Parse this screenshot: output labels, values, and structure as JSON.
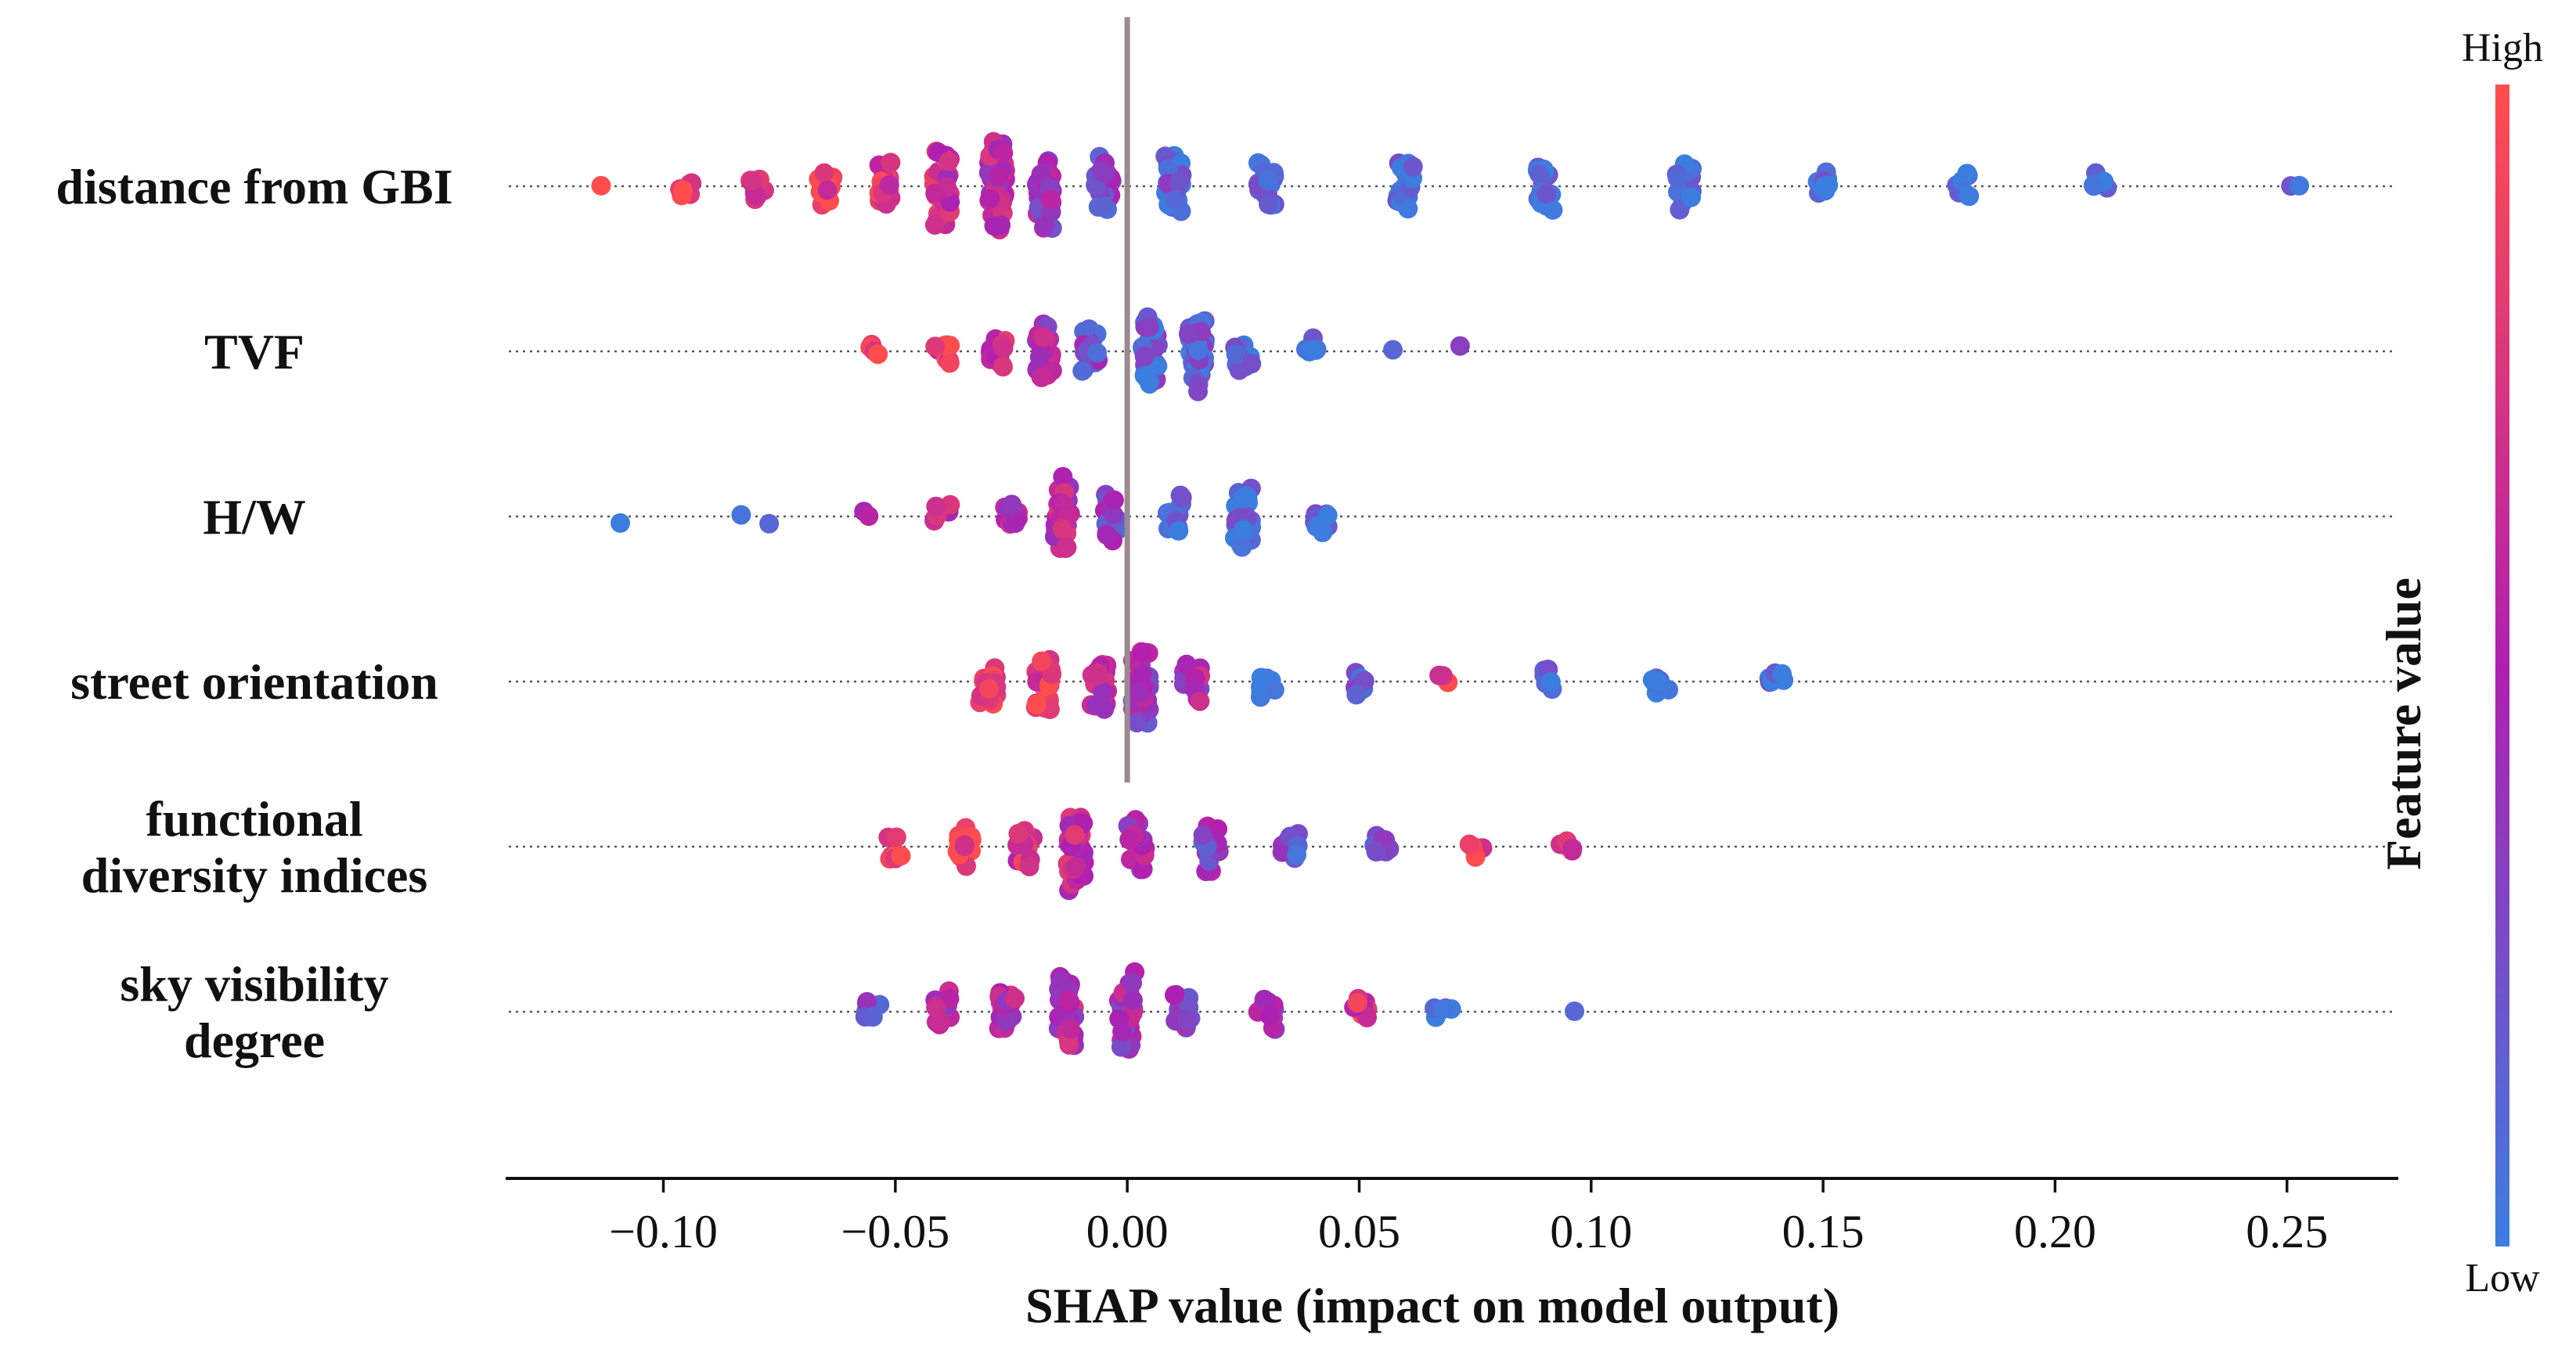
{
  "chart_data": {
    "type": "scatter",
    "subtype": "shap-beeswarm",
    "title": "",
    "xlabel": "SHAP value (impact on model output)",
    "ylabel": "",
    "xlim": [
      -0.134,
      0.274
    ],
    "x_ticks": [
      -0.1,
      -0.05,
      0.0,
      0.05,
      0.1,
      0.15,
      0.2,
      0.25
    ],
    "x_tick_labels": [
      "−0.10",
      "−0.05",
      "0.00",
      "0.05",
      "0.10",
      "0.15",
      "0.20",
      "0.25"
    ],
    "colorbar": {
      "title": "Feature value",
      "high_label": "High",
      "low_label": "Low",
      "high_color": "#ff4d4d",
      "mid_color": "#b01fb0",
      "low_color": "#3c7de0"
    },
    "zero_line_color": "#9a8a90",
    "features": [
      {
        "lines": [
          "distance from GBI"
        ],
        "x_min": -0.114,
        "x_max": 0.256,
        "clusters": [
          {
            "x": -0.114,
            "value": 0.95,
            "count": 1
          },
          {
            "x": -0.095,
            "value": 0.85,
            "count": 6
          },
          {
            "x": -0.08,
            "value": 0.85,
            "count": 10
          },
          {
            "x": -0.065,
            "value": 0.85,
            "count": 14
          },
          {
            "x": -0.052,
            "value": 0.75,
            "count": 18
          },
          {
            "x": -0.04,
            "value": 0.65,
            "count": 36
          },
          {
            "x": -0.028,
            "value": 0.55,
            "count": 48
          },
          {
            "x": -0.018,
            "value": 0.45,
            "count": 34
          },
          {
            "x": -0.005,
            "value": 0.3,
            "count": 24
          },
          {
            "x": 0.01,
            "value": 0.15,
            "count": 24
          },
          {
            "x": 0.03,
            "value": 0.05,
            "count": 22
          },
          {
            "x": 0.06,
            "value": 0.05,
            "count": 20
          },
          {
            "x": 0.09,
            "value": 0.05,
            "count": 18
          },
          {
            "x": 0.12,
            "value": 0.05,
            "count": 16
          },
          {
            "x": 0.15,
            "value": 0.05,
            "count": 10
          },
          {
            "x": 0.18,
            "value": 0.05,
            "count": 8
          },
          {
            "x": 0.21,
            "value": 0.05,
            "count": 6
          },
          {
            "x": 0.252,
            "value": 0.05,
            "count": 2
          }
        ]
      },
      {
        "lines": [
          "TVF"
        ],
        "x_min": -0.06,
        "x_max": 0.072,
        "clusters": [
          {
            "x": -0.055,
            "value": 0.95,
            "count": 5
          },
          {
            "x": -0.04,
            "value": 0.8,
            "count": 8
          },
          {
            "x": -0.028,
            "value": 0.65,
            "count": 16
          },
          {
            "x": -0.018,
            "value": 0.5,
            "count": 26
          },
          {
            "x": -0.008,
            "value": 0.3,
            "count": 20
          },
          {
            "x": 0.005,
            "value": 0.15,
            "count": 28
          },
          {
            "x": 0.015,
            "value": 0.15,
            "count": 34
          },
          {
            "x": 0.025,
            "value": 0.1,
            "count": 14
          },
          {
            "x": 0.04,
            "value": 0.05,
            "count": 6
          },
          {
            "x": 0.056,
            "value": 0.05,
            "count": 1
          },
          {
            "x": 0.072,
            "value": 0.4,
            "count": 1
          }
        ]
      },
      {
        "lines": [
          "H/W"
        ],
        "x_min": -0.108,
        "x_max": 0.052,
        "clusters": [
          {
            "x": -0.108,
            "value": 0.05,
            "count": 1
          },
          {
            "x": -0.085,
            "value": 0.2,
            "count": 1
          },
          {
            "x": -0.077,
            "value": 0.05,
            "count": 1
          },
          {
            "x": -0.056,
            "value": 0.5,
            "count": 2
          },
          {
            "x": -0.04,
            "value": 0.6,
            "count": 6
          },
          {
            "x": -0.025,
            "value": 0.55,
            "count": 14
          },
          {
            "x": -0.014,
            "value": 0.55,
            "count": 30
          },
          {
            "x": -0.003,
            "value": 0.3,
            "count": 18
          },
          {
            "x": 0.01,
            "value": 0.1,
            "count": 16
          },
          {
            "x": 0.025,
            "value": 0.05,
            "count": 26
          },
          {
            "x": 0.042,
            "value": 0.05,
            "count": 12
          }
        ]
      },
      {
        "lines": [
          "street orientation"
        ],
        "x_min": -0.036,
        "x_max": 0.157,
        "clusters": [
          {
            "x": -0.03,
            "value": 0.9,
            "count": 18
          },
          {
            "x": -0.018,
            "value": 0.8,
            "count": 24
          },
          {
            "x": -0.006,
            "value": 0.6,
            "count": 24
          },
          {
            "x": 0.003,
            "value": 0.4,
            "count": 34
          },
          {
            "x": 0.014,
            "value": 0.5,
            "count": 22
          },
          {
            "x": 0.03,
            "value": 0.1,
            "count": 12
          },
          {
            "x": 0.05,
            "value": 0.15,
            "count": 10
          },
          {
            "x": 0.068,
            "value": 0.8,
            "count": 3
          },
          {
            "x": 0.09,
            "value": 0.05,
            "count": 6
          },
          {
            "x": 0.115,
            "value": 0.05,
            "count": 8
          },
          {
            "x": 0.14,
            "value": 0.05,
            "count": 8
          }
        ]
      },
      {
        "lines": [
          "functional",
          "diversity indices"
        ],
        "x_min": -0.055,
        "x_max": 0.103,
        "clusters": [
          {
            "x": -0.05,
            "value": 0.9,
            "count": 8
          },
          {
            "x": -0.035,
            "value": 0.85,
            "count": 14
          },
          {
            "x": -0.022,
            "value": 0.75,
            "count": 16
          },
          {
            "x": -0.011,
            "value": 0.6,
            "count": 36
          },
          {
            "x": 0.002,
            "value": 0.45,
            "count": 24
          },
          {
            "x": 0.018,
            "value": 0.35,
            "count": 18
          },
          {
            "x": 0.035,
            "value": 0.25,
            "count": 14
          },
          {
            "x": 0.055,
            "value": 0.2,
            "count": 10
          },
          {
            "x": 0.075,
            "value": 0.8,
            "count": 5
          },
          {
            "x": 0.095,
            "value": 0.65,
            "count": 5
          }
        ]
      },
      {
        "lines": [
          "sky visibility",
          "degree"
        ],
        "x_min": -0.063,
        "x_max": 0.097,
        "clusters": [
          {
            "x": -0.055,
            "value": 0.25,
            "count": 8
          },
          {
            "x": -0.04,
            "value": 0.5,
            "count": 14
          },
          {
            "x": -0.026,
            "value": 0.55,
            "count": 18
          },
          {
            "x": -0.013,
            "value": 0.55,
            "count": 30
          },
          {
            "x": 0.0,
            "value": 0.45,
            "count": 30
          },
          {
            "x": 0.012,
            "value": 0.4,
            "count": 20
          },
          {
            "x": 0.03,
            "value": 0.45,
            "count": 14
          },
          {
            "x": 0.05,
            "value": 0.75,
            "count": 10
          },
          {
            "x": 0.068,
            "value": 0.1,
            "count": 5
          },
          {
            "x": 0.097,
            "value": 0.05,
            "count": 1
          }
        ]
      }
    ]
  }
}
